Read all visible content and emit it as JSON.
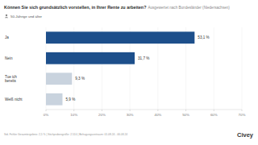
{
  "chart_data": {
    "type": "bar",
    "orientation": "horizontal",
    "title": "Können Sie sich grundsätzlich vorstellen, in Ihrer Rente zu arbeiten?",
    "subtitle": "Ausgewertet nach Bundesländer (Niedersachsen)",
    "categories": [
      "Ja",
      "Nein",
      "Tue ich bereits",
      "Weiß nicht"
    ],
    "values": [
      53.1,
      31.7,
      9.3,
      5.9
    ],
    "value_labels": [
      "53,1 %",
      "31,7 %",
      "9,3 %",
      "5,9 %"
    ],
    "colors": [
      "#1d4f8b",
      "#1d4f8b",
      "#c9d3de",
      "#c9d3de"
    ],
    "data_labels": true,
    "xlim": [
      0,
      70
    ],
    "xticks": [
      {
        "value": 0,
        "label": "0%"
      },
      {
        "value": 10,
        "label": "10%"
      },
      {
        "value": 20,
        "label": "20%"
      },
      {
        "value": 30,
        "label": "30%"
      },
      {
        "value": 40,
        "label": "40%"
      },
      {
        "value": 50,
        "label": "50%"
      },
      {
        "value": 60,
        "label": "60%"
      },
      {
        "value": 70,
        "label": "70%"
      }
    ],
    "grid": true,
    "annotations": [
      "50-Jährige und älter",
      "Std. Fehler Gesamtergebnis: 2,5 % | Stichprobengröße: 2.510 | Befragungszeitraum: 01.08.24 - 06.08.24",
      "Civey"
    ]
  }
}
